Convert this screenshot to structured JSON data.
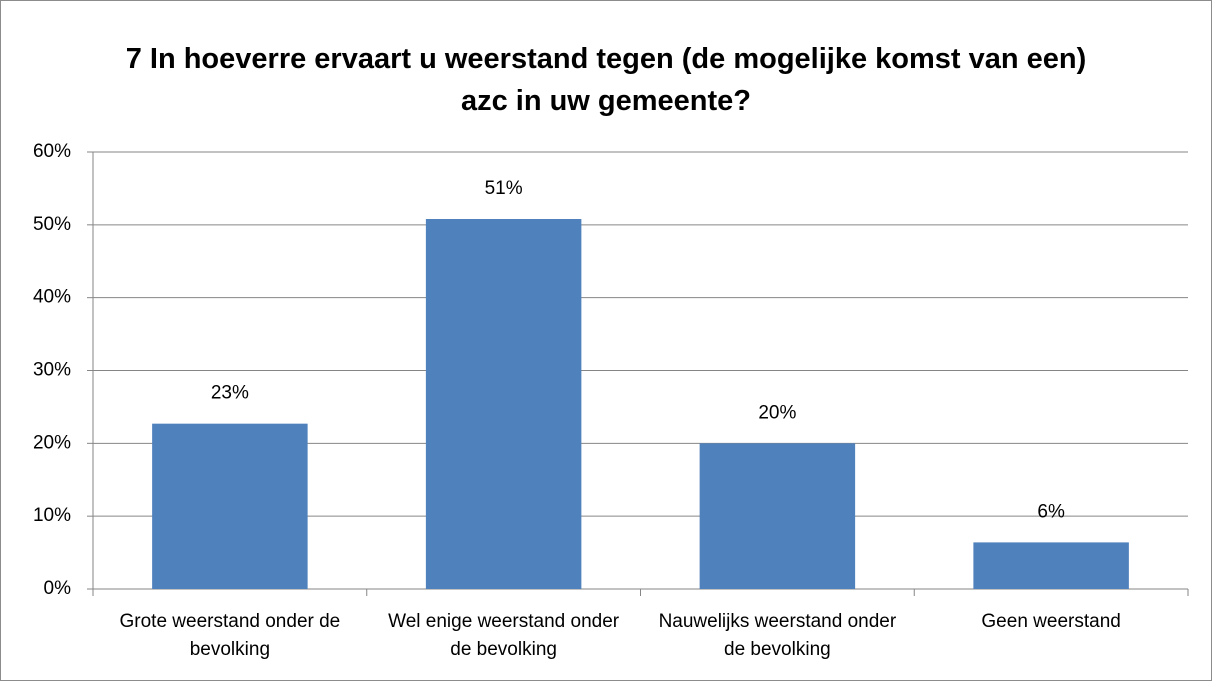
{
  "chart_data": {
    "type": "bar",
    "title": "7 In hoeverre ervaart u weerstand tegen (de mogelijke komst van een) azc in uw gemeente?",
    "categories": [
      "Grote weerstand onder de bevolking",
      "Wel enige weerstand onder de bevolking",
      "Nauwelijks weerstand onder de bevolking",
      "Geen weerstand"
    ],
    "values": [
      22.7,
      50.8,
      20,
      6.4
    ],
    "value_labels": [
      "23%",
      "51%",
      "20%",
      "6%"
    ],
    "color": "#4f81bd",
    "ylim": [
      0,
      60
    ],
    "yticks": [
      {
        "value": 0,
        "label": "0%"
      },
      {
        "value": 10,
        "label": "10%"
      },
      {
        "value": 20,
        "label": "20%"
      },
      {
        "value": 30,
        "label": "30%"
      },
      {
        "value": 40,
        "label": "40%"
      },
      {
        "value": 50,
        "label": "50%"
      },
      {
        "value": 60,
        "label": "60%"
      }
    ],
    "grid": true
  }
}
